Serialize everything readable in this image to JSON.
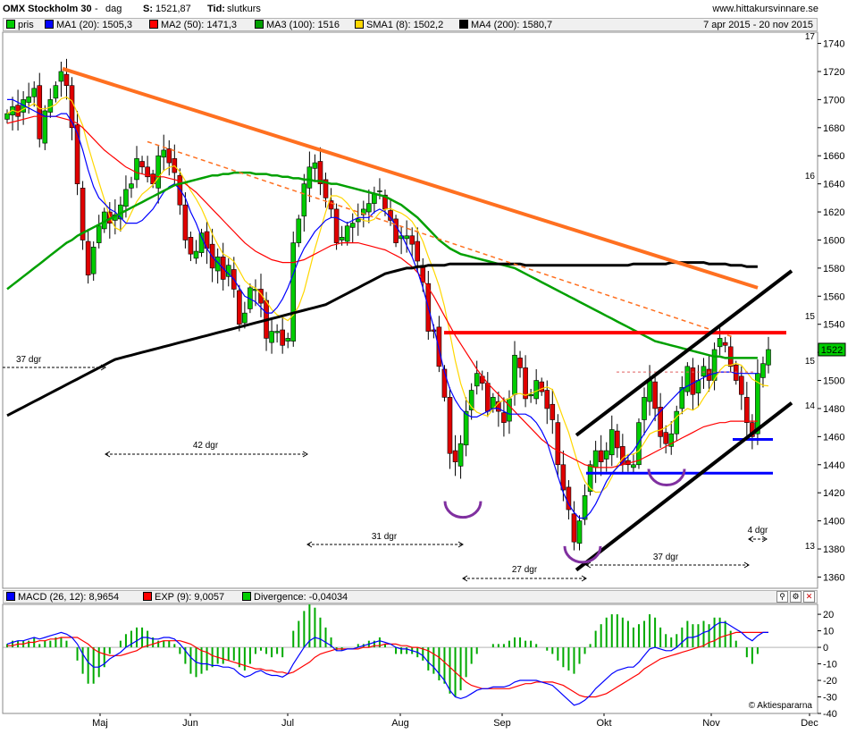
{
  "header": {
    "title": "OMX Stockholm 30",
    "period_sep": "-",
    "period": "dag",
    "close_label": "S:",
    "close_value": "1521,87",
    "time_label": "Tid:",
    "time_value": "slutkurs",
    "site": "www.hittakursvinnare.se"
  },
  "legend": {
    "items": [
      {
        "label": "pris",
        "color": "#00cc00"
      },
      {
        "label": "MA1 (20): 1505,3",
        "color": "#0000ff"
      },
      {
        "label": "MA2 (50): 1471,3",
        "color": "#ff0000"
      },
      {
        "label": "MA3 (100): 1516",
        "color": "#00a000"
      },
      {
        "label": "SMA1 (8): 1502,2",
        "color": "#ffd700"
      },
      {
        "label": "MA4 (200): 1580,7",
        "color": "#000000"
      }
    ],
    "date_range": "7 apr 2015 - 20 nov 2015"
  },
  "macd_legend": {
    "items": [
      {
        "label": "MACD (26, 12): 8,9654",
        "color": "#0000ff"
      },
      {
        "label": "EXP (9): 9,0057",
        "color": "#ff0000"
      },
      {
        "label": "Divergence: -0,04034",
        "color": "#00cc00"
      }
    ]
  },
  "tool_icons": [
    "magnify-icon",
    "settings-icon",
    "close-icon"
  ],
  "watermark": "© Aktiespararna",
  "price_badge": "1522",
  "chart_data": [
    {
      "type": "candlestick",
      "ylim": [
        1352,
        1748
      ],
      "yticks": [
        "1360",
        "1380",
        "1400",
        "1420",
        "1440",
        "1460",
        "1480",
        "1500",
        "1520",
        "1540",
        "1560",
        "1580",
        "1600",
        "1620",
        "1640",
        "1660",
        "1680",
        "1700",
        "1720",
        "1740"
      ],
      "xticks": [
        "Maj",
        "Jun",
        "Jul",
        "Aug",
        "Sep",
        "Okt",
        "Nov",
        "Dec"
      ],
      "xtick_pos": [
        0.0,
        22.0,
        44.0,
        66.0,
        89.0,
        111.0,
        134.0,
        155.0
      ],
      "close": [
        1690,
        1695,
        1688,
        1700,
        1702,
        1708,
        1672,
        1692,
        1700,
        1710,
        1720,
        1710,
        1680,
        1640,
        1600,
        1575,
        1595,
        1610,
        1620,
        1612,
        1618,
        1625,
        1636,
        1640,
        1658,
        1652,
        1645,
        1640,
        1660,
        1664,
        1655,
        1648,
        1625,
        1600,
        1590,
        1592,
        1605,
        1594,
        1580,
        1588,
        1572,
        1582,
        1565,
        1540,
        1548,
        1566,
        1565,
        1555,
        1530,
        1535,
        1535,
        1525,
        1530,
        1598,
        1615,
        1640,
        1652,
        1655,
        1640,
        1630,
        1622,
        1598,
        1602,
        1610,
        1612,
        1615,
        1622,
        1626,
        1633,
        1635,
        1622,
        1614,
        1598,
        1603,
        1603,
        1597,
        1585,
        1570,
        1535,
        1535,
        1510,
        1488,
        1448,
        1442,
        1455,
        1478,
        1493,
        1505,
        1498,
        1478,
        1488,
        1478,
        1470,
        1487,
        1518,
        1509,
        1487,
        1490,
        1500,
        1492,
        1480,
        1472,
        1440,
        1422,
        1408,
        1385,
        1400,
        1418,
        1440,
        1450,
        1442,
        1450,
        1465,
        1452,
        1440,
        1440,
        1440,
        1470,
        1488,
        1500,
        1480,
        1460,
        1455,
        1462,
        1478,
        1495,
        1510,
        1490,
        1500,
        1510,
        1500,
        1522,
        1530,
        1525,
        1510,
        1500,
        1490,
        1470,
        1460,
        1505,
        1512,
        1522
      ],
      "ma20": [
        1700,
        1700,
        1698,
        1696,
        1694,
        1692,
        1690,
        1688,
        1688,
        1688,
        1690,
        1690,
        1684,
        1676,
        1664,
        1650,
        1638,
        1630,
        1626,
        1622,
        1620,
        1616,
        1612,
        1612,
        1612,
        1614,
        1618,
        1622,
        1628,
        1634,
        1638,
        1640,
        1636,
        1630,
        1620,
        1612,
        1602,
        1594,
        1588,
        1584,
        1580,
        1576,
        1572,
        1566,
        1560,
        1558,
        1556,
        1552,
        1548,
        1548,
        1552,
        1558,
        1566,
        1576,
        1586,
        1594,
        1600,
        1606,
        1610,
        1614,
        1616,
        1616,
        1614,
        1612,
        1614,
        1616,
        1616,
        1616,
        1620,
        1622,
        1620,
        1616,
        1610,
        1604,
        1596,
        1588,
        1578,
        1566,
        1552,
        1538,
        1522,
        1506,
        1494,
        1486,
        1480,
        1476,
        1474,
        1474,
        1476,
        1478,
        1480,
        1480,
        1478,
        1476,
        1476,
        1476,
        1476,
        1474,
        1470,
        1464,
        1456,
        1444,
        1432,
        1420,
        1412,
        1406,
        1402,
        1402,
        1406,
        1412,
        1420,
        1428,
        1434,
        1438,
        1442,
        1446,
        1450,
        1456,
        1462,
        1468,
        1474,
        1478,
        1482,
        1486,
        1490,
        1494,
        1496,
        1498,
        1500,
        1502,
        1504,
        1505,
        1506,
        1506,
        1506,
        1505,
        1505,
        1505,
        1505,
        1505
      ],
      "ma50": [
        1683,
        1684,
        1685,
        1686,
        1687,
        1688,
        1688,
        1688,
        1688,
        1688,
        1687,
        1686,
        1685,
        1683,
        1680,
        1676,
        1672,
        1668,
        1664,
        1661,
        1658,
        1655,
        1652,
        1650,
        1648,
        1647,
        1646,
        1646,
        1645,
        1645,
        1644,
        1643,
        1642,
        1640,
        1637,
        1634,
        1630,
        1626,
        1622,
        1618,
        1614,
        1610,
        1606,
        1602,
        1598,
        1595,
        1592,
        1590,
        1588,
        1586,
        1585,
        1584,
        1584,
        1584,
        1585,
        1586,
        1588,
        1590,
        1592,
        1594,
        1596,
        1597,
        1598,
        1598,
        1598,
        1598,
        1597,
        1596,
        1595,
        1594,
        1593,
        1591,
        1589,
        1587,
        1584,
        1581,
        1577,
        1572,
        1566,
        1560,
        1553,
        1546,
        1539,
        1532,
        1526,
        1520,
        1514,
        1508,
        1503,
        1498,
        1494,
        1490,
        1486,
        1482,
        1478,
        1474,
        1470,
        1466,
        1462,
        1458,
        1455,
        1452,
        1450,
        1448,
        1446,
        1444,
        1442,
        1440,
        1439,
        1438,
        1438,
        1438,
        1438,
        1439,
        1440,
        1441,
        1442,
        1443,
        1445,
        1447,
        1449,
        1451,
        1453,
        1455,
        1457,
        1459,
        1461,
        1463,
        1465,
        1467,
        1468,
        1469,
        1470,
        1470,
        1471,
        1471,
        1471,
        1471,
        1471,
        1471
      ],
      "ma100": [
        1565,
        1568,
        1571,
        1574,
        1577,
        1580,
        1583,
        1586,
        1589,
        1592,
        1595,
        1598,
        1600,
        1603,
        1605,
        1607,
        1609,
        1611,
        1613,
        1615,
        1617,
        1619,
        1621,
        1623,
        1625,
        1627,
        1629,
        1631,
        1633,
        1635,
        1637,
        1639,
        1640,
        1641,
        1642,
        1643,
        1644,
        1645,
        1646,
        1646,
        1647,
        1647,
        1648,
        1648,
        1648,
        1648,
        1647,
        1647,
        1647,
        1646,
        1646,
        1645,
        1645,
        1644,
        1644,
        1643,
        1643,
        1642,
        1642,
        1641,
        1640,
        1640,
        1639,
        1638,
        1637,
        1636,
        1635,
        1634,
        1633,
        1632,
        1631,
        1629,
        1627,
        1625,
        1622,
        1619,
        1616,
        1612,
        1608,
        1604,
        1600,
        1597,
        1594,
        1592,
        1590,
        1589,
        1588,
        1587,
        1586,
        1585,
        1584,
        1583,
        1582,
        1581,
        1580,
        1578,
        1576,
        1574,
        1572,
        1570,
        1568,
        1566,
        1564,
        1562,
        1560,
        1558,
        1556,
        1554,
        1552,
        1550,
        1548,
        1546,
        1544,
        1542,
        1540,
        1538,
        1536,
        1534,
        1532,
        1530,
        1528,
        1527,
        1526,
        1525,
        1524,
        1523,
        1522,
        1521,
        1520,
        1519,
        1518,
        1517,
        1517,
        1516,
        1516,
        1516,
        1516,
        1516,
        1516,
        1516
      ],
      "ma200": [
        1475,
        1477,
        1479,
        1481,
        1483,
        1485,
        1487,
        1489,
        1491,
        1493,
        1495,
        1497,
        1499,
        1501,
        1503,
        1505,
        1507,
        1509,
        1511,
        1513,
        1515,
        1516,
        1517,
        1518,
        1519,
        1520,
        1521,
        1522,
        1523,
        1524,
        1525,
        1526,
        1527,
        1528,
        1529,
        1530,
        1531,
        1532,
        1533,
        1534,
        1535,
        1536,
        1537,
        1538,
        1539,
        1540,
        1541,
        1542,
        1543,
        1544,
        1545,
        1546,
        1547,
        1548,
        1549,
        1550,
        1551,
        1552,
        1553,
        1554,
        1556,
        1558,
        1560,
        1562,
        1564,
        1566,
        1568,
        1570,
        1572,
        1574,
        1576,
        1577,
        1578,
        1579,
        1580,
        1580,
        1581,
        1581,
        1582,
        1582,
        1582,
        1582,
        1583,
        1583,
        1583,
        1583,
        1583,
        1583,
        1583,
        1583,
        1583,
        1583,
        1583,
        1583,
        1583,
        1583,
        1582,
        1582,
        1582,
        1582,
        1582,
        1582,
        1582,
        1582,
        1582,
        1582,
        1582,
        1582,
        1582,
        1582,
        1582,
        1582,
        1582,
        1582,
        1582,
        1582,
        1583,
        1583,
        1583,
        1583,
        1583,
        1583,
        1583,
        1584,
        1584,
        1584,
        1584,
        1584,
        1584,
        1584,
        1583,
        1583,
        1583,
        1583,
        1582,
        1582,
        1582,
        1581,
        1581,
        1581
      ],
      "annotations": [
        {
          "text": "42 dgr"
        },
        {
          "text": "31 dgr"
        },
        {
          "text": "27 dgr"
        },
        {
          "text": "37 dgr"
        },
        {
          "text": "4 dgr"
        },
        {
          "text": "37 dgr"
        }
      ],
      "right_edge_labels": [
        "17",
        "16",
        "15",
        "15",
        "14",
        "13"
      ]
    },
    {
      "type": "line",
      "ylim": [
        -40,
        26
      ],
      "yticks": [
        "20",
        "10",
        "0",
        "-10",
        "-20",
        "-30",
        "-40"
      ],
      "series": [
        {
          "name": "MACD (26, 12)",
          "color": "#0000ff",
          "values": [
            2,
            3,
            4,
            4,
            5,
            6,
            5,
            6,
            7,
            8,
            9,
            8,
            6,
            2,
            -4,
            -9,
            -12,
            -12,
            -10,
            -7,
            -5,
            -3,
            0,
            2,
            4,
            6,
            6,
            5,
            5,
            6,
            6,
            5,
            2,
            -2,
            -6,
            -9,
            -10,
            -10,
            -11,
            -11,
            -12,
            -12,
            -13,
            -16,
            -18,
            -17,
            -15,
            -14,
            -16,
            -17,
            -17,
            -18,
            -16,
            -10,
            -5,
            0,
            4,
            6,
            5,
            3,
            1,
            -2,
            -2,
            -1,
            -1,
            0,
            1,
            2,
            3,
            4,
            3,
            2,
            0,
            -1,
            -1,
            -2,
            -3,
            -5,
            -9,
            -12,
            -16,
            -20,
            -26,
            -30,
            -31,
            -30,
            -28,
            -26,
            -25,
            -25,
            -24,
            -24,
            -24,
            -23,
            -21,
            -20,
            -20,
            -20,
            -20,
            -21,
            -22,
            -23,
            -26,
            -29,
            -32,
            -35,
            -34,
            -32,
            -29,
            -25,
            -22,
            -19,
            -16,
            -14,
            -13,
            -12,
            -12,
            -9,
            -5,
            -1,
            0,
            -1,
            -2,
            -2,
            0,
            3,
            6,
            6,
            7,
            9,
            10,
            13,
            15,
            15,
            13,
            11,
            9,
            6,
            4,
            7,
            9,
            9
          ]
        },
        {
          "name": "EXP (9)",
          "color": "#ff0000",
          "values": [
            1,
            1,
            2,
            2,
            3,
            3,
            4,
            4,
            5,
            5,
            6,
            6,
            6,
            6,
            4,
            2,
            -1,
            -3,
            -4,
            -5,
            -5,
            -5,
            -4,
            -3,
            -2,
            0,
            1,
            2,
            3,
            4,
            4,
            4,
            4,
            3,
            2,
            0,
            -2,
            -3,
            -5,
            -6,
            -7,
            -8,
            -9,
            -10,
            -11,
            -12,
            -13,
            -13,
            -14,
            -14,
            -15,
            -15,
            -16,
            -15,
            -13,
            -11,
            -9,
            -6,
            -4,
            -3,
            -2,
            -1,
            -1,
            -1,
            -1,
            -1,
            0,
            0,
            1,
            1,
            2,
            2,
            2,
            1,
            1,
            0,
            0,
            -1,
            -2,
            -4,
            -6,
            -9,
            -12,
            -15,
            -18,
            -21,
            -23,
            -24,
            -25,
            -25,
            -25,
            -25,
            -25,
            -25,
            -24,
            -23,
            -22,
            -22,
            -21,
            -21,
            -21,
            -21,
            -22,
            -23,
            -25,
            -27,
            -29,
            -30,
            -30,
            -30,
            -29,
            -28,
            -26,
            -24,
            -22,
            -20,
            -18,
            -16,
            -13,
            -11,
            -9,
            -7,
            -6,
            -5,
            -4,
            -3,
            -2,
            -1,
            0,
            1,
            3,
            4,
            6,
            7,
            8,
            9,
            9,
            9,
            9,
            9,
            9,
            9
          ]
        },
        {
          "name": "Divergence",
          "color": "#00cc00",
          "values": []
        }
      ]
    }
  ]
}
